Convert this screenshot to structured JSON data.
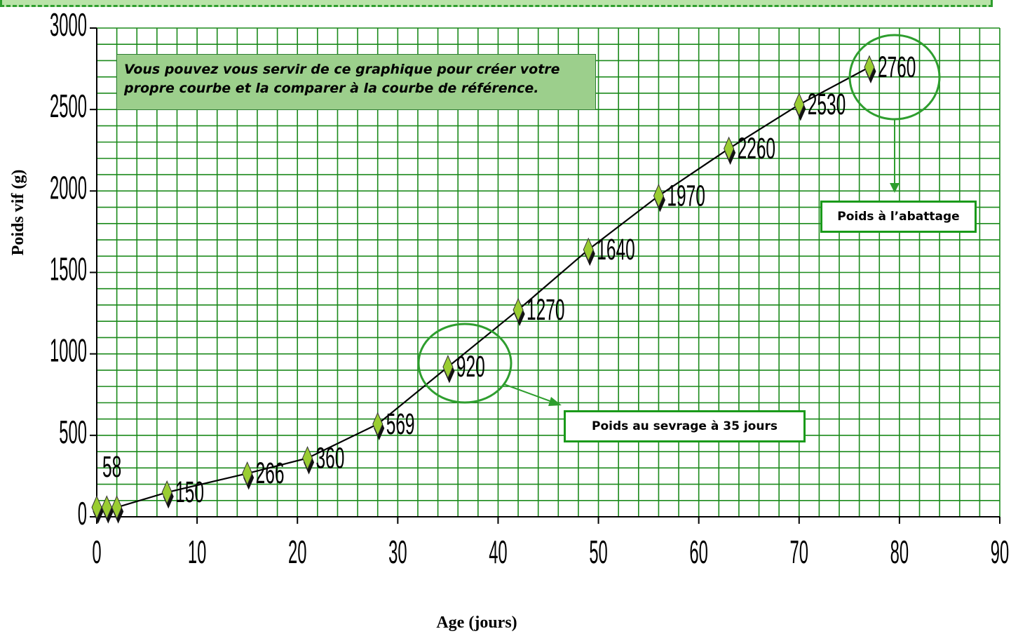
{
  "chart_data": {
    "type": "line",
    "x": [
      0,
      1,
      2,
      7,
      15,
      21,
      28,
      35,
      42,
      49,
      56,
      63,
      70,
      77
    ],
    "series": [
      {
        "values": [
          58,
          58,
          58,
          150,
          266,
          360,
          569,
          920,
          1270,
          1640,
          1970,
          2260,
          2530,
          2760
        ]
      }
    ],
    "point_labels": [
      {
        "x": 0,
        "text": "58"
      },
      {
        "x": 7,
        "text": "150"
      },
      {
        "x": 15,
        "text": "266"
      },
      {
        "x": 21,
        "text": "360"
      },
      {
        "x": 28,
        "text": "569"
      },
      {
        "x": 35,
        "text": "920"
      },
      {
        "x": 42,
        "text": "1270"
      },
      {
        "x": 49,
        "text": "1640"
      },
      {
        "x": 56,
        "text": "1970"
      },
      {
        "x": 63,
        "text": "2260"
      },
      {
        "x": 70,
        "text": "2530"
      },
      {
        "x": 77,
        "text": "2760"
      }
    ],
    "xlabel": "Age (jours)",
    "ylabel": "Poids vif (g)",
    "xlim": [
      0,
      90
    ],
    "ylim": [
      0,
      3000
    ],
    "x_ticks": [
      0,
      10,
      20,
      30,
      40,
      50,
      60,
      70,
      80,
      90
    ],
    "y_ticks": [
      0,
      500,
      1000,
      1500,
      2000,
      2500,
      3000
    ],
    "grid": true,
    "grid_color": "#1b8a1b",
    "line_color": "#000000",
    "marker": "diamond",
    "marker_color": "#9acd32",
    "annotations": {
      "note": "Vous pouvez vous servir de ce graphique pour créer votre propre courbe et la comparer à la courbe de référence.",
      "weaning_label": "Poids au sevrage à 35 jours",
      "slaughter_label": "Poids à l’abattage"
    },
    "highlight_color": "#2e9e2e"
  }
}
